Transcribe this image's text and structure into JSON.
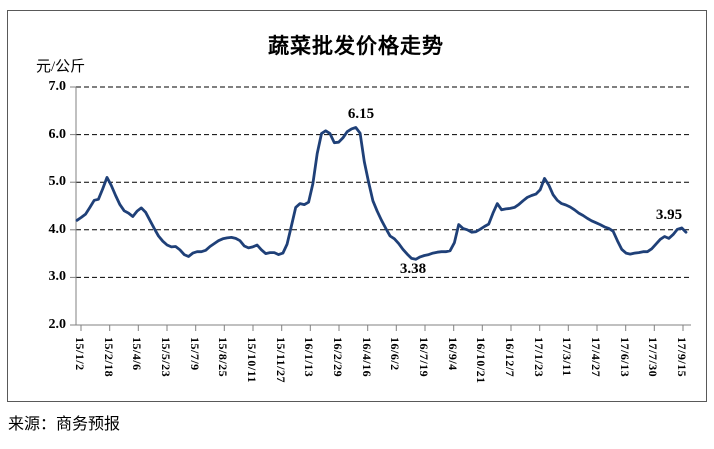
{
  "chart": {
    "title": "蔬菜批发价格走势",
    "y_axis_unit": "元/公斤",
    "source": "来源：商务预报"
  },
  "chart_data": {
    "type": "line",
    "title": "蔬菜批发价格走势",
    "ylabel": "元/公斤",
    "ylim": [
      2.0,
      7.0
    ],
    "y_tick_labels": [
      "7.0",
      "6.0",
      "5.0",
      "4.0",
      "3.0",
      "2.0"
    ],
    "y_tick_values": [
      7.0,
      6.0,
      5.0,
      4.0,
      3.0,
      2.0
    ],
    "grid": "horizontal-dashed-black",
    "legend": "none",
    "x_tick_labels": [
      "15/1/2",
      "15/2/18",
      "15/4/6",
      "15/5/23",
      "15/7/9",
      "15/8/25",
      "15/10/11",
      "15/11/27",
      "16/1/13",
      "16/2/29",
      "16/4/16",
      "16/6/2",
      "16/7/19",
      "16/9/4",
      "16/10/21",
      "16/12/7",
      "17/1/23",
      "17/3/11",
      "17/4/27",
      "17/6/13",
      "17/7/30",
      "17/9/15"
    ],
    "series": [
      {
        "name": "蔬菜批发价格",
        "values": [
          4.2,
          4.26,
          4.33,
          4.47,
          4.62,
          4.64,
          4.86,
          5.1,
          4.93,
          4.72,
          4.53,
          4.4,
          4.35,
          4.28,
          4.39,
          4.46,
          4.37,
          4.2,
          4.03,
          3.87,
          3.76,
          3.68,
          3.64,
          3.65,
          3.58,
          3.48,
          3.44,
          3.51,
          3.54,
          3.54,
          3.57,
          3.65,
          3.71,
          3.77,
          3.81,
          3.83,
          3.84,
          3.82,
          3.77,
          3.66,
          3.62,
          3.64,
          3.68,
          3.58,
          3.5,
          3.52,
          3.52,
          3.48,
          3.51,
          3.7,
          4.08,
          4.47,
          4.55,
          4.53,
          4.58,
          4.97,
          5.6,
          6.02,
          6.08,
          6.02,
          5.83,
          5.84,
          5.93,
          6.06,
          6.12,
          6.15,
          6.03,
          5.43,
          5.0,
          4.61,
          4.39,
          4.2,
          4.03,
          3.87,
          3.81,
          3.71,
          3.59,
          3.49,
          3.4,
          3.38,
          3.43,
          3.46,
          3.48,
          3.51,
          3.53,
          3.54,
          3.54,
          3.56,
          3.73,
          4.11,
          4.03,
          4.0,
          3.95,
          3.96,
          4.01,
          4.07,
          4.12,
          4.35,
          4.55,
          4.42,
          4.44,
          4.45,
          4.47,
          4.53,
          4.61,
          4.68,
          4.72,
          4.75,
          4.84,
          5.08,
          4.94,
          4.74,
          4.62,
          4.55,
          4.52,
          4.48,
          4.42,
          4.35,
          4.3,
          4.24,
          4.19,
          4.15,
          4.11,
          4.06,
          4.03,
          3.97,
          3.77,
          3.59,
          3.51,
          3.49,
          3.51,
          3.52,
          3.54,
          3.54,
          3.6,
          3.7,
          3.8,
          3.86,
          3.82,
          3.9,
          4.01,
          4.04,
          3.95
        ]
      }
    ],
    "annotations": [
      {
        "label": "6.15",
        "index": 65,
        "value": 6.15
      },
      {
        "label": "3.38",
        "index": 79,
        "value": 3.38
      },
      {
        "label": "3.95",
        "index": 142,
        "value": 3.95
      }
    ],
    "colors": {
      "line": "#1f4078",
      "grid": "#000000",
      "axis": "#808080",
      "text": "#000000",
      "frame": "#595959"
    }
  }
}
